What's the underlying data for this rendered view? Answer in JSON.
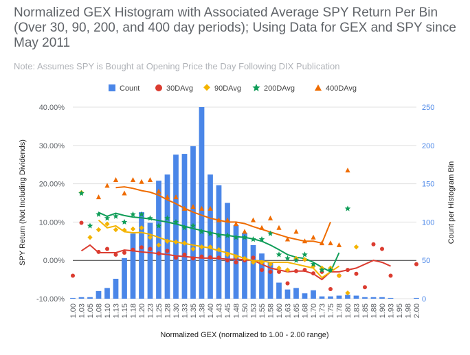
{
  "chart_data": {
    "type": "combo",
    "title": "Normalized GEX Histogram with Associated Average SPY Return Per Bin (Over 30, 90, 200, and 400 day periods); Using Data for GEX and SPY since May 2011",
    "subtitle": "Note: Assumes SPY is Bought at Opening Price the Day Following DIX Publication",
    "xlabel": "Normalized GEX (normalized to 1.00 - 2.00 range)",
    "ylabel_left": "SPY Return (Not Including Dividends)",
    "ylabel_right": "Count per Histogram Bin",
    "ylim_left": [
      -0.1,
      0.4
    ],
    "ylim_right": [
      0,
      250
    ],
    "left_ticks": [
      "40.00%",
      "30.00%",
      "20.00%",
      "10.00%",
      "0.00%",
      "-10.00%"
    ],
    "right_ticks": [
      "250",
      "200",
      "150",
      "100",
      "50",
      "0"
    ],
    "x_tick_labels": [
      "1.00",
      "1.03",
      "1.05",
      "1.08",
      "1.10",
      "1.13",
      "1.15",
      "1.18",
      "1.20",
      "1.23",
      "1.25",
      "1.28",
      "1.30",
      "1.33",
      "1.35",
      "1.38",
      "1.40",
      "1.43",
      "1.45",
      "1.48",
      "1.50",
      "1.53",
      "1.55",
      "1.58",
      "1.60",
      "1.63",
      "1.65",
      "1.68",
      "1.70",
      "1.73",
      "1.75",
      "1.78",
      "1.80",
      "1.83",
      "1.85",
      "1.88",
      "1.90",
      "1.93",
      "1.95",
      "1.98",
      "2.00"
    ],
    "legend": [
      "Count",
      "30DAvg",
      "90DAvg",
      "200DAvg",
      "400DAvg"
    ],
    "legend_position": "top",
    "colors": {
      "Count": "#4a86e8",
      "30DAvg": "#db3c30",
      "90DAvg": "#f4b400",
      "200DAvg": "#0f9d58",
      "400DAvg": "#ef6c00"
    },
    "count": [
      1,
      2,
      2,
      10,
      14,
      26,
      53,
      85,
      113,
      99,
      154,
      162,
      188,
      189,
      199,
      250,
      162,
      148,
      125,
      96,
      86,
      70,
      59,
      48,
      21,
      12,
      14,
      7,
      11,
      3,
      3,
      4,
      5,
      4,
      2,
      2,
      2,
      1,
      0,
      0,
      1
    ],
    "series": [
      {
        "name": "30DAvg",
        "values": [
          -0.04,
          0.098,
          null,
          0.022,
          0.03,
          0.015,
          0.02,
          0.028,
          0.034,
          0.03,
          0.018,
          0.025,
          0.007,
          0.015,
          0.005,
          0.01,
          0.008,
          0.007,
          0.0,
          -0.005,
          0.0,
          0.007,
          -0.025,
          -0.03,
          -0.03,
          -0.06,
          -0.028,
          -0.025,
          -0.034,
          -0.03,
          -0.075,
          -0.04,
          -0.025,
          -0.035,
          -0.07,
          0.042,
          0.03,
          -0.04,
          null,
          null,
          -0.01
        ]
      },
      {
        "name": "90DAvg",
        "values": [
          null,
          0.177,
          0.06,
          0.08,
          0.095,
          0.08,
          0.079,
          0.082,
          0.085,
          0.06,
          0.04,
          0.05,
          0.048,
          0.045,
          0.03,
          0.035,
          0.035,
          0.028,
          0.015,
          0.01,
          0.005,
          -0.005,
          -0.005,
          -0.01,
          -0.02,
          -0.025,
          0.005,
          0.002,
          -0.015,
          -0.02,
          -0.02,
          -0.04,
          -0.085,
          0.035,
          null,
          null,
          null,
          null,
          null,
          null,
          null
        ]
      },
      {
        "name": "200DAvg",
        "values": [
          null,
          0.175,
          0.09,
          0.12,
          0.11,
          0.115,
          0.1,
          0.12,
          0.12,
          0.11,
          0.09,
          0.11,
          0.1,
          0.085,
          0.09,
          0.075,
          0.07,
          0.065,
          0.065,
          0.06,
          0.06,
          0.055,
          0.055,
          0.07,
          0.015,
          0.005,
          0.0,
          0.015,
          -0.01,
          -0.025,
          -0.025,
          null,
          0.135,
          null,
          null,
          null,
          null,
          null,
          null,
          null,
          null
        ]
      },
      {
        "name": "400DAvg",
        "values": [
          null,
          null,
          null,
          0.165,
          0.195,
          0.21,
          0.175,
          0.21,
          0.205,
          0.21,
          0.18,
          0.165,
          0.165,
          0.135,
          0.14,
          0.135,
          0.135,
          0.105,
          0.105,
          0.095,
          0.075,
          0.105,
          0.085,
          0.11,
          0.085,
          0.055,
          0.075,
          0.05,
          0.06,
          0.045,
          0.045,
          0.04,
          0.235,
          null,
          null,
          null,
          null,
          null,
          null,
          null,
          null
        ]
      }
    ],
    "trend_lines": [
      {
        "name": "30DAvg",
        "values": [
          null,
          0.025,
          0.04,
          0.02,
          0.02,
          0.02,
          0.027,
          0.025,
          0.022,
          0.02,
          0.018,
          0.015,
          0.012,
          0.01,
          0.008,
          0.006,
          0.006,
          0.005,
          0.003,
          0.003,
          0.002,
          0.0,
          -0.01,
          -0.02,
          -0.025,
          -0.03,
          -0.028,
          -0.028,
          -0.035,
          -0.05,
          -0.03,
          -0.03,
          -0.025,
          -0.02,
          -0.01,
          0.0,
          -0.005,
          -0.015,
          null,
          null,
          null
        ]
      },
      {
        "name": "90DAvg",
        "values": [
          null,
          null,
          null,
          0.105,
          0.085,
          0.09,
          0.075,
          0.072,
          0.073,
          0.068,
          0.06,
          0.052,
          0.048,
          0.044,
          0.04,
          0.036,
          0.032,
          0.025,
          0.02,
          0.013,
          0.005,
          -0.001,
          -0.002,
          -0.005,
          -0.005,
          -0.005,
          -0.01,
          -0.015,
          -0.02,
          -0.045,
          -0.03,
          -0.015,
          null,
          null,
          null,
          null,
          null,
          null,
          null,
          null,
          null
        ]
      },
      {
        "name": "200DAvg",
        "values": [
          null,
          null,
          null,
          0.125,
          0.115,
          0.123,
          0.117,
          0.113,
          0.111,
          0.108,
          0.104,
          0.1,
          0.095,
          0.089,
          0.083,
          0.078,
          0.073,
          0.068,
          0.065,
          0.062,
          0.06,
          0.056,
          0.05,
          0.04,
          0.028,
          0.015,
          0.008,
          0.005,
          -0.005,
          -0.018,
          -0.03,
          0.02,
          null,
          null,
          null,
          null,
          null,
          null,
          null,
          null,
          null
        ]
      },
      {
        "name": "400DAvg",
        "values": [
          null,
          null,
          null,
          null,
          null,
          0.19,
          0.192,
          0.188,
          0.182,
          0.178,
          0.17,
          0.158,
          0.148,
          0.136,
          0.126,
          0.118,
          0.11,
          0.105,
          0.1,
          0.1,
          0.096,
          0.088,
          0.081,
          0.074,
          0.067,
          0.06,
          0.055,
          0.05,
          0.05,
          0.045,
          0.1,
          null,
          null,
          null,
          null,
          null,
          null,
          null,
          null,
          null,
          null
        ]
      }
    ]
  }
}
